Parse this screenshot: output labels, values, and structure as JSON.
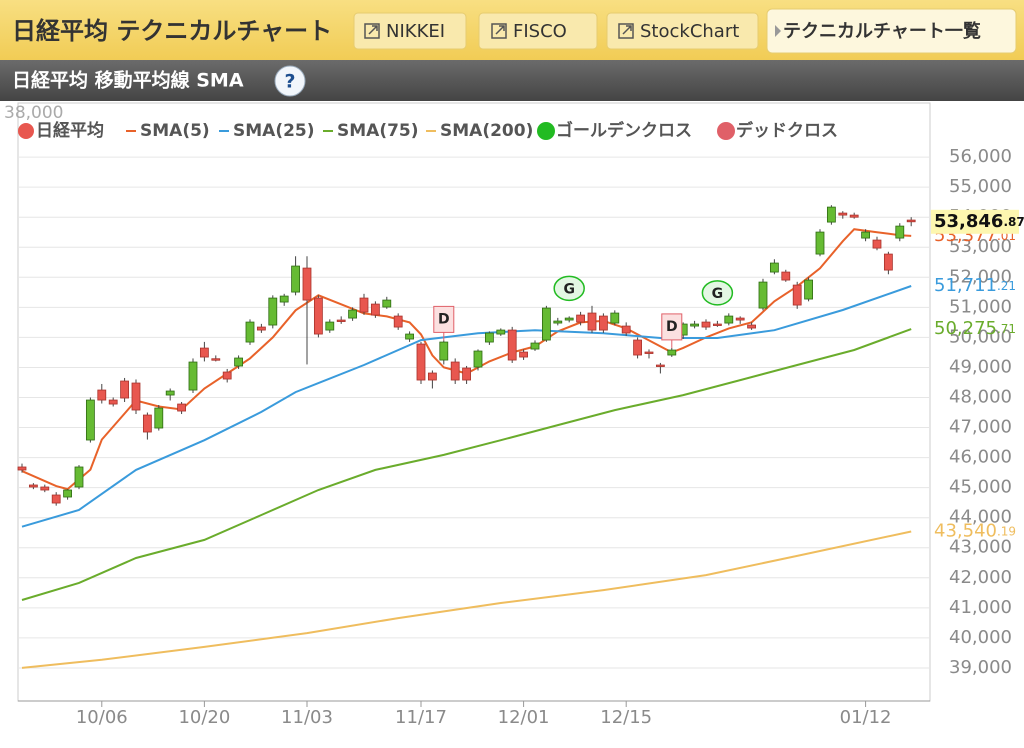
{
  "header": {
    "title": "日経平均 テクニカルチャート",
    "buttons": [
      "NIKKEI",
      "FISCO",
      "StockChart",
      "テクニカルチャート一覧"
    ],
    "subtitle": "日経平均 移動平均線 SMA",
    "help": "?"
  },
  "chart_data": {
    "type": "candlestick",
    "clipped_label": "38,000",
    "categories": [
      null,
      null,
      null,
      null,
      null,
      null,
      null,
      "10/06",
      null,
      null,
      null,
      null,
      null,
      null,
      null,
      null,
      "10/20",
      null,
      null,
      null,
      null,
      null,
      null,
      null,
      null,
      "11/03",
      null,
      null,
      null,
      null,
      null,
      null,
      null,
      null,
      null,
      "11/17",
      null,
      null,
      null,
      null,
      null,
      null,
      null,
      null,
      "12/01",
      null,
      null,
      null,
      null,
      null,
      null,
      null,
      null,
      "12/15",
      null,
      null,
      null,
      null,
      null,
      null,
      null,
      null,
      null,
      null,
      null,
      null,
      null,
      null,
      null,
      null,
      null,
      null,
      null,
      null,
      "01/12",
      null,
      null,
      null,
      null,
      null,
      null,
      null
    ],
    "ylim": [
      37900,
      57800
    ],
    "yticks": [
      {
        "value": 39000,
        "label": "39,000"
      },
      {
        "value": 40000,
        "label": "40,000"
      },
      {
        "value": 41000,
        "label": "41,000"
      },
      {
        "value": 42000,
        "label": "42,000"
      },
      {
        "value": 43000,
        "label": "43,000"
      },
      {
        "value": 44000,
        "label": "44,000"
      },
      {
        "value": 45000,
        "label": "45,000"
      },
      {
        "value": 46000,
        "label": "46,000"
      },
      {
        "value": 47000,
        "label": "47,000"
      },
      {
        "value": 48000,
        "label": "48,000"
      },
      {
        "value": 49000,
        "label": "49,000"
      },
      {
        "value": 50000,
        "label": "50,000"
      },
      {
        "value": 51000,
        "label": "51,000"
      },
      {
        "value": 52000,
        "label": "52,000"
      },
      {
        "value": 53000,
        "label": "53,000"
      },
      {
        "value": 54000,
        "label": "54,000"
      },
      {
        "value": 55000,
        "label": "55,000"
      },
      {
        "value": 56000,
        "label": "56,000"
      }
    ],
    "grid": true,
    "candles": {
      "name": "日経平均",
      "color": "#e8574f",
      "up_color": "#66bb33",
      "down_color": "#e8574f",
      "open": [
        45687,
        45088,
        45021,
        44755,
        44688,
        45021,
        46585,
        48248,
        47915,
        48548,
        48481,
        47416,
        46984,
        48082,
        47782,
        48248,
        49645,
        49290,
        48847,
        49047,
        49845,
        50344,
        50411,
        51176,
        51508,
        52307,
        51309,
        50244,
        50577,
        50643,
        51309,
        51109,
        51010,
        50710,
        49945,
        49779,
        48814,
        49246,
        49180,
        48980,
        49013,
        49845,
        50111,
        50244,
        49512,
        49612,
        49912,
        50477,
        50577,
        50743,
        50810,
        50710,
        50477,
        50377,
        49912,
        49513,
        49080,
        49413,
        50078,
        50377,
        50510,
        50444,
        50477,
        50643,
        50411,
        50976,
        52174,
        52174,
        51741,
        51276,
        52773,
        53837,
        54137,
        54070,
        53305,
        53239,
        52773,
        53305,
        53904
      ],
      "high": [
        45800,
        45150,
        45100,
        44850,
        44950,
        45750,
        48000,
        48450,
        48000,
        48650,
        48600,
        47500,
        47750,
        48300,
        47850,
        49300,
        49850,
        49400,
        48950,
        49400,
        50600,
        50450,
        51400,
        51450,
        52700,
        52700,
        51400,
        50600,
        50700,
        51000,
        51450,
        51200,
        51350,
        50800,
        50200,
        49850,
        48900,
        49900,
        49300,
        49050,
        49600,
        50200,
        50300,
        50350,
        49600,
        49900,
        51050,
        50650,
        50700,
        50850,
        51050,
        50800,
        50900,
        50500,
        50000,
        49600,
        49150,
        49650,
        50500,
        50550,
        50600,
        50550,
        50800,
        50700,
        50500,
        51950,
        52600,
        52250,
        51850,
        52000,
        53600,
        54400,
        54200,
        54150,
        53600,
        53350,
        52850,
        53800,
        54000
      ],
      "low": [
        45500,
        44950,
        44850,
        44400,
        44600,
        44950,
        46500,
        47800,
        47700,
        47850,
        47450,
        46600,
        46900,
        47900,
        47450,
        48150,
        49200,
        49200,
        48500,
        48950,
        49750,
        50150,
        50300,
        51050,
        51400,
        49100,
        50000,
        50150,
        50450,
        50550,
        50750,
        50650,
        50950,
        50250,
        49850,
        48450,
        48300,
        49100,
        48450,
        48450,
        48900,
        49750,
        50050,
        49150,
        49250,
        49550,
        49850,
        50400,
        50500,
        50400,
        50150,
        50150,
        50400,
        50050,
        49300,
        49300,
        48800,
        49350,
        49950,
        50300,
        50250,
        50350,
        50400,
        50450,
        50250,
        50900,
        52100,
        51850,
        50950,
        51200,
        52700,
        53750,
        53950,
        53950,
        53200,
        52900,
        52100,
        53200,
        53700
      ],
      "close": [
        45587,
        45021,
        44921,
        44488,
        44921,
        45687,
        47915,
        47915,
        47782,
        47982,
        47583,
        46851,
        47649,
        48215,
        47549,
        49180,
        49346,
        49270,
        48614,
        49313,
        50510,
        50244,
        51309,
        51375,
        52374,
        51242,
        50111,
        50510,
        50560,
        50910,
        50843,
        50743,
        51242,
        50344,
        50111,
        48581,
        48581,
        49845,
        48581,
        48581,
        49546,
        50145,
        50244,
        49246,
        49346,
        49812,
        50976,
        50544,
        50643,
        50510,
        50244,
        50244,
        50810,
        50145,
        49413,
        49479,
        49047,
        49579,
        50444,
        50444,
        50344,
        50440,
        50710,
        50577,
        50311,
        51841,
        52474,
        51908,
        51076,
        51908,
        53505,
        54336,
        54070,
        54000,
        53505,
        52972,
        52240,
        53704,
        53846.87
      ],
      "last_label": "53,846.87"
    },
    "series": [
      {
        "name": "SMA(5)",
        "color": "#e8622a",
        "x": [
          0,
          3,
          4,
          6,
          7,
          10,
          12,
          14,
          16,
          18,
          20,
          22,
          24,
          26,
          28,
          30,
          32,
          34,
          35,
          36,
          37,
          39,
          41,
          43,
          45,
          47,
          49,
          51,
          53,
          55,
          57,
          58,
          60,
          62,
          64,
          66,
          68,
          70,
          72,
          73,
          75,
          77,
          78
        ],
        "values": [
          45550,
          45050,
          44950,
          45600,
          46600,
          47900,
          47700,
          47600,
          48300,
          48800,
          49300,
          50000,
          50900,
          51400,
          51100,
          50800,
          50700,
          50500,
          50100,
          49400,
          49000,
          48800,
          49200,
          49500,
          49700,
          50200,
          50500,
          50550,
          50300,
          49900,
          49500,
          49650,
          50000,
          50300,
          50500,
          51200,
          51700,
          52300,
          53200,
          53600,
          53500,
          53400,
          53377.01
        ],
        "last_label": "53,377.01"
      },
      {
        "name": "SMA(25)",
        "color": "#3a9bdc",
        "x": [
          0,
          5,
          10,
          16,
          21,
          24,
          30,
          35,
          40,
          45,
          51,
          56,
          61,
          66,
          72,
          78
        ],
        "values": [
          43700,
          44260,
          45590,
          46580,
          47520,
          48180,
          49080,
          49910,
          50140,
          50240,
          50140,
          49980,
          49980,
          50240,
          50910,
          51711.21
        ],
        "last_label": "51,711.21"
      },
      {
        "name": "SMA(75)",
        "color": "#6aac2c",
        "x": [
          0,
          5,
          10,
          16,
          21,
          26,
          31,
          37,
          42,
          47,
          52,
          58,
          63,
          68,
          73,
          78
        ],
        "values": [
          41260,
          41830,
          42660,
          43260,
          44090,
          44920,
          45590,
          46090,
          46580,
          47080,
          47580,
          48080,
          48580,
          49080,
          49580,
          50275.71
        ],
        "last_label": "50,275.71"
      },
      {
        "name": "SMA(200)",
        "color": "#efbd5e",
        "x": [
          0,
          7,
          16,
          25,
          33,
          42,
          51,
          60,
          68,
          78
        ],
        "values": [
          39000,
          39270,
          39700,
          40160,
          40660,
          41160,
          41590,
          42090,
          42730,
          43540.19
        ],
        "last_label": "43,540.19"
      }
    ],
    "signals": {
      "golden_name": "ゴールデンクロス",
      "golden_color": "#22bb22",
      "dead_name": "デッドクロス",
      "dead_color": "#e06068",
      "marks": [
        {
          "kind": "dead",
          "x": 37,
          "label": "D"
        },
        {
          "kind": "golden",
          "x": 48,
          "label": "G"
        },
        {
          "kind": "dead",
          "x": 57,
          "label": "D"
        },
        {
          "kind": "golden",
          "x": 61,
          "label": "G"
        }
      ]
    }
  }
}
